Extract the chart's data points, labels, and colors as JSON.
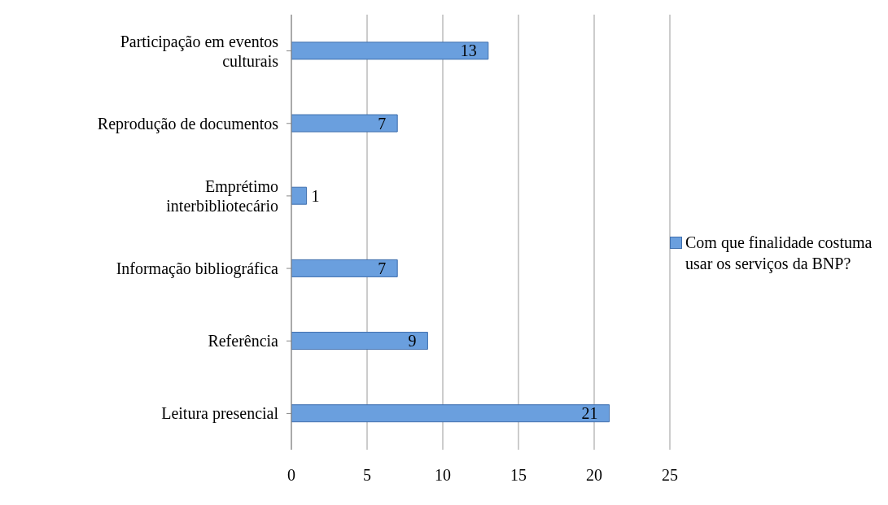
{
  "chart_data": {
    "type": "bar",
    "orientation": "horizontal",
    "categories": [
      "Participação em eventos culturais",
      "Reprodução de documentos",
      "Emprétimo interbibliotecário",
      "Informação bibliográfica",
      "Referência",
      "Leitura presencial"
    ],
    "series": [
      {
        "name": "Com que finalidade costuma usar os serviços da BNP?",
        "color": "#6a9fde",
        "values": [
          13,
          7,
          1,
          7,
          9,
          21
        ]
      }
    ],
    "xlim": [
      0,
      25
    ],
    "xticks": [
      0,
      5,
      10,
      15,
      20,
      25
    ],
    "grid": "x",
    "legend": "right",
    "data_labels": true
  }
}
